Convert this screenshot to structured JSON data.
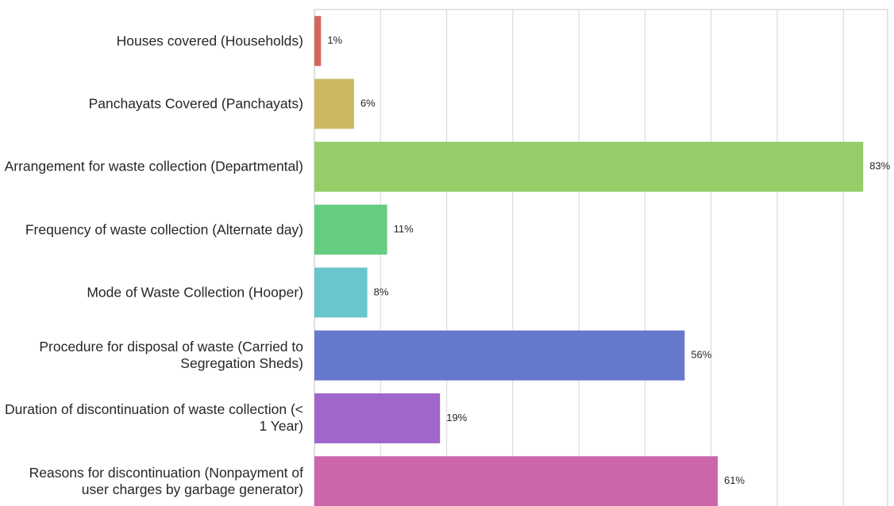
{
  "chart_data": {
    "type": "barh",
    "categories": [
      "Houses covered (Households)",
      "Panchayats Covered (Panchayats)",
      "Arrangement for waste collection (Departmental)",
      "Frequency of waste collection (Alternate day)",
      "Mode of Waste Collection (Hooper)",
      "Procedure for disposal of waste (Carried to Segregation Sheds)",
      "Duration of discontinuation of waste collection (< 1 Year)",
      "Reasons for discontinuation (Nonpayment of user charges by garbage generator)"
    ],
    "values": [
      1,
      6,
      83,
      11,
      8,
      56,
      19,
      61
    ],
    "value_labels": [
      "1%",
      "6%",
      "83%",
      "11%",
      "8%",
      "56%",
      "19%",
      "61%"
    ],
    "colors": [
      "#d4665e",
      "#ccb863",
      "#95cd68",
      "#66cc80",
      "#68c6cc",
      "#6779cc",
      "#a066cc",
      "#cc66ac"
    ],
    "xlim": [
      0,
      86.7
    ],
    "xticks": [
      0,
      10,
      20,
      30,
      40,
      50,
      60,
      70,
      80
    ],
    "grid": true
  }
}
